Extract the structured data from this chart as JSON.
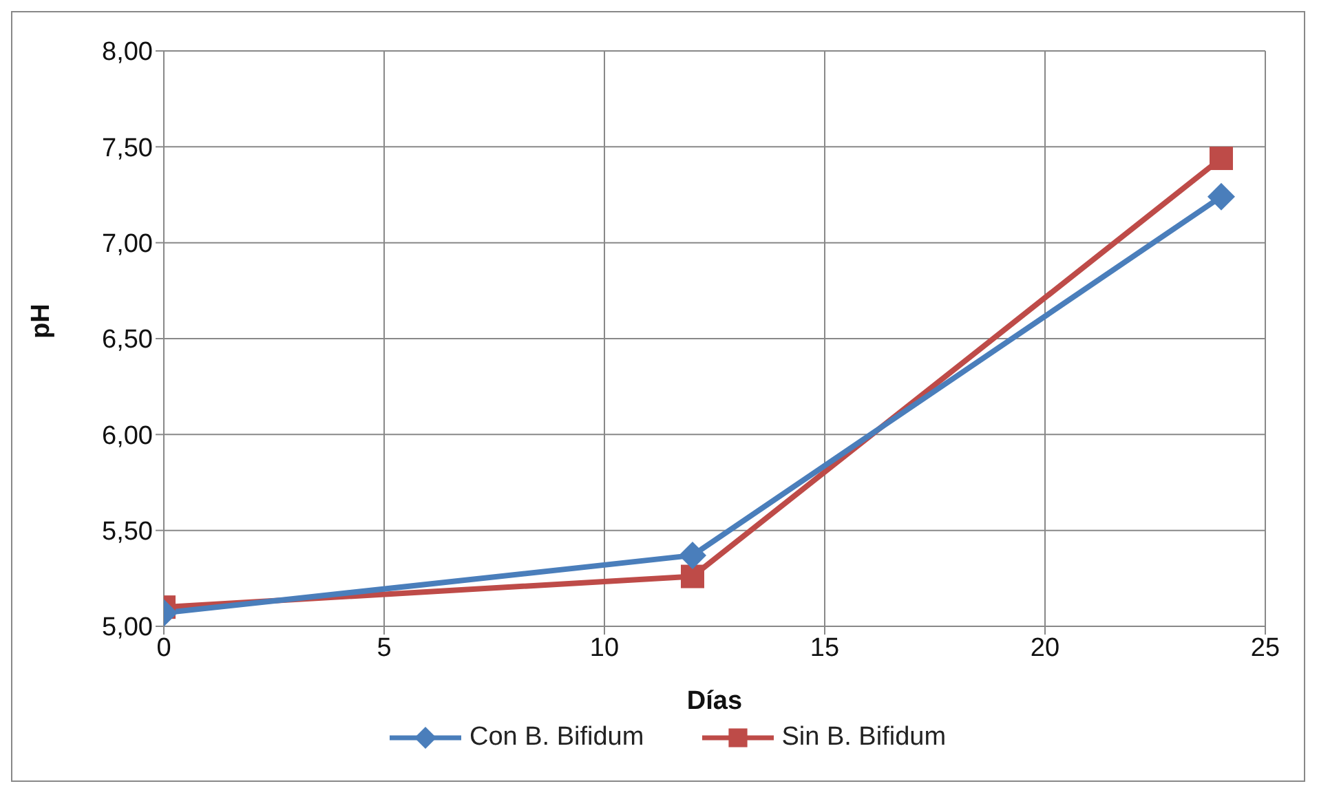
{
  "chart_data": {
    "type": "line",
    "xlabel": "Días",
    "ylabel": "pH",
    "x": [
      0,
      12,
      24
    ],
    "series": [
      {
        "name": "Con B. Bifidum",
        "color": "#4a7ebb",
        "marker": "diamond",
        "values": [
          5.07,
          5.37,
          7.24
        ]
      },
      {
        "name": "Sin B. Bifidum",
        "color": "#be4b48",
        "marker": "square",
        "values": [
          5.1,
          5.26,
          7.44
        ]
      }
    ],
    "xlim": [
      0,
      25
    ],
    "xticks": [
      0,
      5,
      10,
      15,
      20,
      25
    ],
    "ylim": [
      5,
      8
    ],
    "yticks": [
      {
        "value": 5,
        "label": "5,00"
      },
      {
        "value": 5.5,
        "label": "5,50"
      },
      {
        "value": 6,
        "label": "6,00"
      },
      {
        "value": 6.5,
        "label": "6,50"
      },
      {
        "value": 7,
        "label": "7,00"
      },
      {
        "value": 7.5,
        "label": "7,50"
      },
      {
        "value": 8,
        "label": "8,00"
      }
    ],
    "grid": true,
    "legend": "bottom"
  }
}
